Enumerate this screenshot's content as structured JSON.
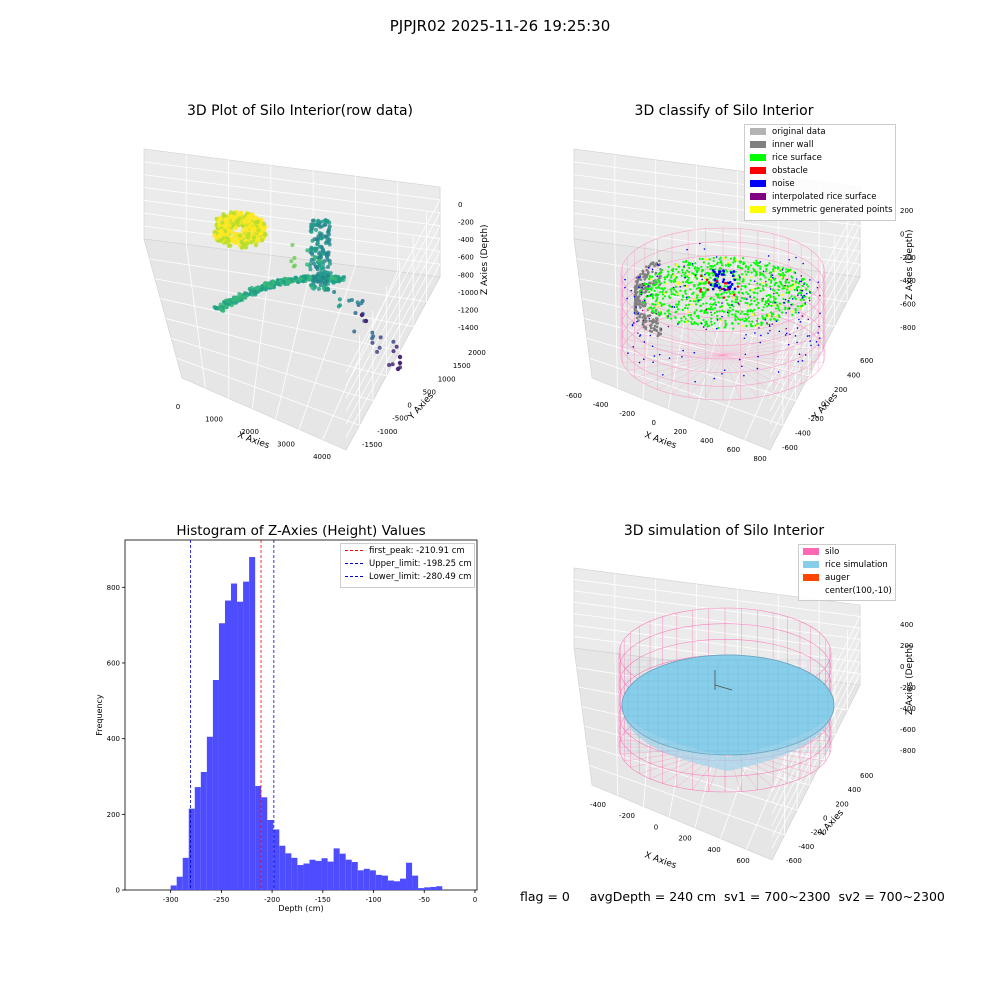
{
  "suptitle": "PJPJR02 2025-11-26 19:25:30",
  "panels": {
    "raw": {
      "title": "3D Plot of Silo Interior(row data)",
      "xlabel": "X Axies",
      "ylabel": "Y Axies",
      "zlabel": "Z Axies (Depth)",
      "x_ticks": [
        "0",
        "1000",
        "2000",
        "3000",
        "4000"
      ],
      "y_ticks": [
        "-1500",
        "-1000",
        "-500",
        "0",
        "500",
        "1000",
        "1500",
        "2000"
      ],
      "z_ticks": [
        "-1400",
        "-1200",
        "-1000",
        "-800",
        "-600",
        "-400",
        "-200",
        "0"
      ]
    },
    "classify": {
      "title": "3D classify of Silo Interior",
      "xlabel": "X Axies",
      "ylabel": "Y Axies",
      "zlabel": "Z Axies (Depth)",
      "x_ticks": [
        "-600",
        "-400",
        "-200",
        "0",
        "200",
        "400",
        "600",
        "800"
      ],
      "y_ticks": [
        "-600",
        "-400",
        "-200",
        "0",
        "200",
        "400",
        "600"
      ],
      "z_ticks": [
        "-800",
        "-600",
        "-400",
        "-200",
        "0",
        "200"
      ],
      "legend": [
        {
          "label": "original data",
          "color": "#b3b3b3"
        },
        {
          "label": "inner wall",
          "color": "#808080"
        },
        {
          "label": "rice surface",
          "color": "#00ff00"
        },
        {
          "label": "obstacle",
          "color": "#ff0000"
        },
        {
          "label": "noise",
          "color": "#0000ff"
        },
        {
          "label": "interpolated rice surface",
          "color": "#800080"
        },
        {
          "label": "symmetric generated points",
          "color": "#ffff00"
        }
      ]
    },
    "simulation": {
      "title": "3D simulation of Silo Interior",
      "xlabel": "X Axies",
      "ylabel": "Y Axies",
      "zlabel": "Z Axies (Depth)",
      "x_ticks": [
        "-400",
        "-200",
        "0",
        "200",
        "400",
        "600"
      ],
      "y_ticks": [
        "-600",
        "-400",
        "-200",
        "0",
        "200",
        "400",
        "600"
      ],
      "z_ticks": [
        "-800",
        "-600",
        "-400",
        "-200",
        "0",
        "200",
        "400"
      ],
      "legend": [
        {
          "label": "silo",
          "color": "#ff69b4"
        },
        {
          "label": "rice simulation",
          "color": "#87ceeb"
        },
        {
          "label": "auger",
          "color": "#ff4500"
        },
        {
          "label": "center(100,-10)",
          "color": ""
        }
      ]
    }
  },
  "footer": {
    "flag": "flag = 0",
    "avg": "avgDepth = 240 cm",
    "sv1": "sv1 = 700~2300",
    "sv2": "sv2 = 700~2300"
  },
  "chart_data": [
    {
      "type": "bar",
      "title": "Histogram of Z-Axies (Height) Values",
      "xlabel": "Depth (cm)",
      "ylabel": "Frequency",
      "xlim": [
        -345,
        2
      ],
      "ylim": [
        0,
        925
      ],
      "x_ticks": [
        -300,
        -250,
        -200,
        -150,
        -100,
        -50,
        0
      ],
      "y_ticks": [
        0,
        200,
        400,
        600,
        800
      ],
      "bar_color": "#4d4dff",
      "bin_width": 5.95,
      "bins_start": [
        -300,
        -294.05,
        -288.1,
        -282.15,
        -276.2,
        -270.25,
        -264.3,
        -258.35,
        -252.4,
        -246.45,
        -240.5,
        -234.55,
        -228.6,
        -222.65,
        -216.7,
        -210.75,
        -204.8,
        -198.85,
        -192.9,
        -186.95,
        -181.0,
        -175.05,
        -169.1,
        -163.15,
        -157.2,
        -151.25,
        -145.3,
        -139.35,
        -133.4,
        -127.45,
        -121.5,
        -115.55,
        -109.6,
        -103.65,
        -97.7,
        -91.75,
        -85.8,
        -79.85,
        -73.9,
        -67.95,
        -62.0,
        -56.05,
        -50.1,
        -44.15,
        -38.2,
        -32.25,
        -26.3,
        -20.35
      ],
      "values": [
        12,
        35,
        85,
        215,
        272,
        312,
        405,
        555,
        705,
        765,
        810,
        762,
        815,
        880,
        275,
        245,
        185,
        160,
        117,
        97,
        85,
        66,
        70,
        80,
        77,
        84,
        75,
        110,
        96,
        80,
        74,
        52,
        56,
        52,
        40,
        38,
        25,
        23,
        30,
        72,
        38,
        5,
        7,
        8,
        10,
        0,
        0,
        0
      ],
      "vlines": [
        {
          "label": "first_peak: -210.91 cm",
          "x": -210.91,
          "color": "#ff0000"
        },
        {
          "label": "Upper_limit: -198.25 cm",
          "x": -198.25,
          "color": "#0000cc"
        },
        {
          "label": "Lower_limit: -280.49 cm",
          "x": -280.49,
          "color": "#0000cc"
        }
      ],
      "legend_position": "upper-right"
    }
  ]
}
